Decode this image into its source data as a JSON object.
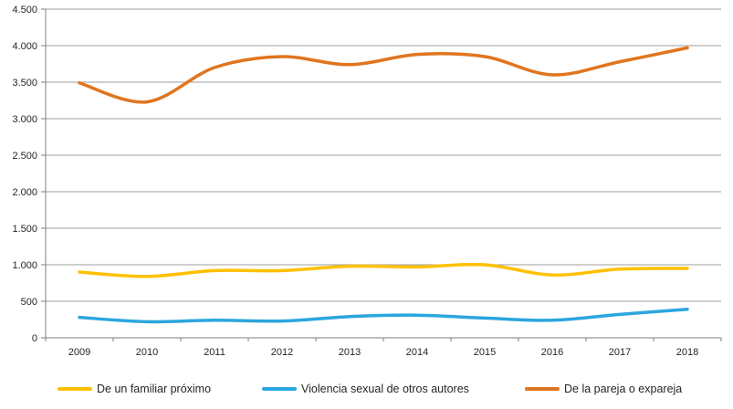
{
  "chart_data": {
    "type": "line",
    "title": "",
    "xlabel": "",
    "ylabel": "",
    "x": [
      "2009",
      "2010",
      "2011",
      "2012",
      "2013",
      "2014",
      "2015",
      "2016",
      "2017",
      "2018"
    ],
    "series": [
      {
        "name": "De un familiar próximo",
        "color": "#FFC000",
        "values": [
          900,
          840,
          920,
          920,
          980,
          970,
          1000,
          860,
          940,
          950
        ]
      },
      {
        "name": "Violencia sexual de otros autores",
        "color": "#2BA6DE",
        "values": [
          280,
          220,
          240,
          230,
          290,
          310,
          270,
          240,
          320,
          390
        ]
      },
      {
        "name": "De la pareja o expareja",
        "color": "#E0751F",
        "values": [
          3490,
          3230,
          3700,
          3850,
          3740,
          3880,
          3850,
          3600,
          3780,
          3970
        ]
      }
    ],
    "ylim": [
      0,
      4500
    ],
    "y_tick_step": 500,
    "y_tick_labels": [
      "0",
      "500",
      "1.000",
      "1.500",
      "2.000",
      "2.500",
      "3.000",
      "3.500",
      "4.000",
      "4.500"
    ],
    "grid": true,
    "smoothed_lines": true,
    "legend_position": "bottom"
  },
  "colors": {
    "background": "#FFFFFF",
    "gridline": "#9E9E9E",
    "axis": "#7F7F7F",
    "text": "#262626"
  },
  "legend": {
    "items": [
      {
        "label": "De un familiar próximo",
        "color": "#FFC000"
      },
      {
        "label": "Violencia sexual de otros autores",
        "color": "#2BA6DE"
      },
      {
        "label": "De la pareja o expareja",
        "color": "#E0751F"
      }
    ]
  }
}
